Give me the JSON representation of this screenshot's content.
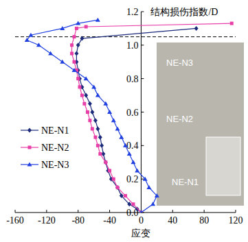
{
  "chart_data": {
    "type": "line",
    "x_label": "应变",
    "y_label": "结构损伤指数/D",
    "xlim": [
      -160,
      120
    ],
    "xticks": [
      -160,
      -120,
      -80,
      -40,
      0,
      40,
      80,
      120
    ],
    "ylim": [
      0,
      1.2
    ],
    "yticks": [
      {
        "value": 0,
        "label": "0.0"
      },
      0.2,
      0.4,
      0.6,
      0.8,
      {
        "value": 1,
        "label": "1.0"
      },
      1.2
    ],
    "reference_line": 1.05,
    "legend": "left",
    "annotations": [
      "NE-N3",
      "NE-N2",
      "NE-N1"
    ],
    "series": [
      {
        "name": "NE-N1",
        "color": "#1b2a7a",
        "marker": "diamond",
        "x": [
          0,
          -5,
          -15,
          -25,
          -30,
          -38,
          -42,
          -45,
          -48,
          -50,
          -52,
          -55,
          -58,
          -62,
          -65,
          -70,
          -75,
          -78,
          -80,
          -82,
          -82,
          -80,
          -75,
          70
        ],
        "values": [
          0,
          0.02,
          0.05,
          0.1,
          0.15,
          0.2,
          0.25,
          0.3,
          0.35,
          0.4,
          0.45,
          0.5,
          0.55,
          0.6,
          0.65,
          0.7,
          0.75,
          0.8,
          0.85,
          0.9,
          0.95,
          1.0,
          1.04,
          1.1
        ]
      },
      {
        "name": "NE-N2",
        "color": "#e83ea8",
        "marker": "square",
        "x": [
          0,
          -10,
          -20,
          -30,
          -35,
          -40,
          -45,
          -52,
          -55,
          -58,
          -62,
          -65,
          -68,
          -72,
          -75,
          -78,
          -80,
          -82,
          -85,
          -88,
          -88,
          -85,
          -82,
          -70,
          115
        ],
        "values": [
          0,
          0.05,
          0.1,
          0.15,
          0.2,
          0.25,
          0.3,
          0.35,
          0.4,
          0.45,
          0.5,
          0.55,
          0.6,
          0.65,
          0.7,
          0.75,
          0.8,
          0.85,
          0.9,
          0.95,
          1.0,
          1.05,
          1.1,
          1.11,
          1.13
        ]
      },
      {
        "name": "NE-N3",
        "color": "#2040e0",
        "marker": "triangle",
        "x": [
          0,
          15,
          20,
          10,
          5,
          -5,
          -10,
          -15,
          -20,
          -25,
          -30,
          -35,
          -40,
          -45,
          -55,
          -60,
          -70,
          -85,
          -100,
          -115,
          -130,
          -145,
          -140,
          -100,
          -80,
          -55
        ],
        "values": [
          0,
          0.05,
          0.1,
          0.15,
          0.2,
          0.25,
          0.3,
          0.35,
          0.4,
          0.45,
          0.5,
          0.55,
          0.6,
          0.65,
          0.7,
          0.75,
          0.8,
          0.85,
          0.9,
          0.95,
          1.0,
          1.03,
          1.06,
          1.1,
          1.13,
          1.15
        ]
      }
    ]
  }
}
